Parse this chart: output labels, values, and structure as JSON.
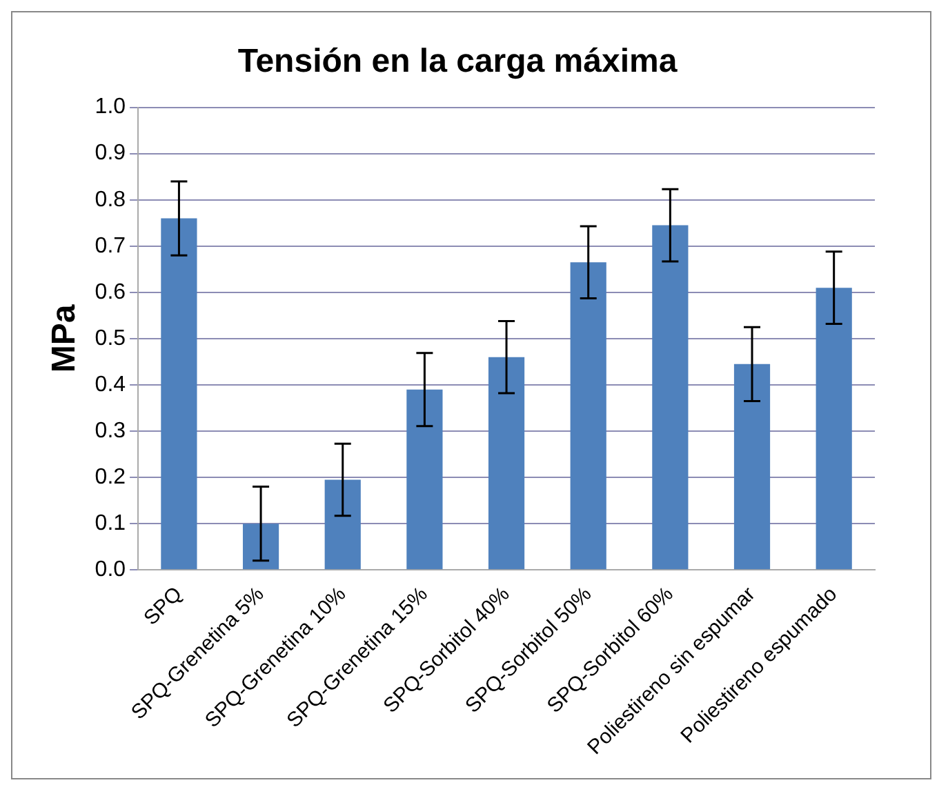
{
  "chart_data": {
    "type": "bar",
    "title": "Tensión en la carga máxima",
    "ylabel": "MPa",
    "categories": [
      "SPQ",
      "SPQ-Grenetina 5%",
      "SPQ-Grenetina 10%",
      "SPQ-Grenetina 15%",
      "SPQ-Sorbitol 40%",
      "SPQ-Sorbitol 50%",
      "SPQ-Sorbitol 60%",
      "Poliestireno sin espumar",
      "Poliestireno espumado"
    ],
    "values": [
      0.76,
      0.1,
      0.195,
      0.39,
      0.46,
      0.665,
      0.745,
      0.445,
      0.61
    ],
    "errors": [
      0.08,
      0.08,
      0.078,
      0.079,
      0.078,
      0.078,
      0.078,
      0.08,
      0.078
    ],
    "color": "#4f81bd",
    "ylim": [
      0,
      1
    ],
    "yticks": [
      {
        "value": 0,
        "label": "0.0"
      },
      {
        "value": 0.1,
        "label": "0.1"
      },
      {
        "value": 0.2,
        "label": "0.2"
      },
      {
        "value": 0.3,
        "label": "0.3"
      },
      {
        "value": 0.4,
        "label": "0.4"
      },
      {
        "value": 0.5,
        "label": "0.5"
      },
      {
        "value": 0.6,
        "label": "0.6"
      },
      {
        "value": 0.7,
        "label": "0.7"
      },
      {
        "value": 0.8,
        "label": "0.8"
      },
      {
        "value": 0.9,
        "label": "0.9"
      },
      {
        "value": 1,
        "label": "1.0"
      }
    ],
    "grid": "y",
    "legend": false
  }
}
